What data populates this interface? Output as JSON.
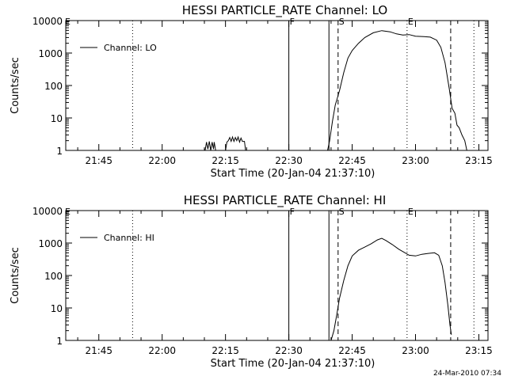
{
  "footer": {
    "timestamp": "24-Mar-2010 07:34"
  },
  "chart_data": [
    {
      "type": "line",
      "title": "HESSI PARTICLE_RATE Channel: LO",
      "xlabel": "Start Time (20-Jan-04 21:37:10)",
      "ylabel": "Counts/sec",
      "y_scale": "log",
      "ylim": [
        1,
        10000
      ],
      "xlim": [
        "21:37:10",
        "23:17:10"
      ],
      "y_ticks": [
        "1",
        "10",
        "100",
        "1000",
        "10000"
      ],
      "x_ticks": [
        "21:45",
        "22:00",
        "22:15",
        "22:30",
        "22:45",
        "23:00",
        "23:15"
      ],
      "legend": {
        "position": "top-left",
        "label": "Channel: LO"
      },
      "markers": [
        {
          "label": "F",
          "time": "22:30:00",
          "style": "solid"
        },
        {
          "label": "",
          "time": "22:39:30",
          "style": "solid"
        },
        {
          "label": "S",
          "time": "22:41:40",
          "style": "dashed"
        },
        {
          "label": "E",
          "time": "22:58:00",
          "style": "dotted"
        },
        {
          "label": "",
          "time": "23:08:20",
          "style": "dashed"
        },
        {
          "label": "",
          "time": "21:53:00",
          "style": "dotted"
        },
        {
          "label": "",
          "time": "23:13:50",
          "style": "dotted"
        }
      ],
      "series": [
        {
          "name": "Channel: LO",
          "segments": [
            [
              [
                "22:10:10",
                1
              ],
              [
                "22:10:30",
                1.8
              ],
              [
                "22:10:50",
                1.1
              ],
              [
                "22:11:10",
                1.9
              ],
              [
                "22:11:30",
                1.0
              ],
              [
                "22:11:50",
                1.8
              ],
              [
                "22:12:10",
                1.1
              ],
              [
                "22:12:20",
                1.8
              ],
              [
                "22:12:40",
                1.0
              ]
            ],
            [
              [
                "22:15:00",
                1.0
              ],
              [
                "22:15:20",
                1.8
              ],
              [
                "22:15:40",
                2.0
              ],
              [
                "22:16:00",
                2.5
              ],
              [
                "22:16:20",
                1.9
              ],
              [
                "22:16:40",
                2.6
              ],
              [
                "22:17:00",
                1.9
              ],
              [
                "22:17:20",
                2.5
              ],
              [
                "22:17:40",
                2.0
              ],
              [
                "22:18:00",
                2.6
              ],
              [
                "22:18:20",
                1.8
              ],
              [
                "22:18:40",
                2.4
              ],
              [
                "22:19:00",
                1.9
              ],
              [
                "22:19:30",
                1.9
              ],
              [
                "22:19:45",
                1.0
              ]
            ],
            [
              [
                "22:39:10",
                1
              ],
              [
                "22:39:40",
                2
              ],
              [
                "22:40:20",
                8
              ],
              [
                "22:41:00",
                25
              ],
              [
                "22:42:00",
                70
              ],
              [
                "22:43:00",
                250
              ],
              [
                "22:44:00",
                700
              ],
              [
                "22:45:00",
                1200
              ],
              [
                "22:46:30",
                2000
              ],
              [
                "22:48:00",
                3000
              ],
              [
                "22:50:00",
                4200
              ],
              [
                "22:52:00",
                4900
              ],
              [
                "22:54:00",
                4500
              ],
              [
                "22:55:30",
                3900
              ],
              [
                "22:57:00",
                3600
              ],
              [
                "22:58:30",
                3700
              ],
              [
                "23:00:00",
                3300
              ],
              [
                "23:02:00",
                3200
              ],
              [
                "23:03:30",
                3100
              ],
              [
                "23:05:00",
                2500
              ],
              [
                "23:06:00",
                1500
              ],
              [
                "23:07:00",
                500
              ],
              [
                "23:08:00",
                80
              ],
              [
                "23:08:40",
                20
              ],
              [
                "23:09:20",
                14
              ],
              [
                "23:09:50",
                6
              ],
              [
                "23:10:20",
                5
              ],
              [
                "23:11:00",
                3
              ],
              [
                "23:11:40",
                2
              ],
              [
                "23:12:10",
                1
              ]
            ]
          ]
        }
      ]
    },
    {
      "type": "line",
      "title": "HESSI PARTICLE_RATE Channel: HI",
      "xlabel": "Start Time (20-Jan-04 21:37:10)",
      "ylabel": "Counts/sec",
      "y_scale": "log",
      "ylim": [
        1,
        10000
      ],
      "xlim": [
        "21:37:10",
        "23:17:10"
      ],
      "y_ticks": [
        "1",
        "10",
        "100",
        "1000",
        "10000"
      ],
      "x_ticks": [
        "21:45",
        "22:00",
        "22:15",
        "22:30",
        "22:45",
        "23:00",
        "23:15"
      ],
      "legend": {
        "position": "top-left",
        "label": "Channel: HI"
      },
      "markers": [
        {
          "label": "F",
          "time": "22:30:00",
          "style": "solid"
        },
        {
          "label": "",
          "time": "22:39:30",
          "style": "solid"
        },
        {
          "label": "S",
          "time": "22:41:40",
          "style": "dashed"
        },
        {
          "label": "E",
          "time": "22:58:00",
          "style": "dotted"
        },
        {
          "label": "",
          "time": "23:08:20",
          "style": "dashed"
        },
        {
          "label": "",
          "time": "21:53:00",
          "style": "dotted"
        },
        {
          "label": "",
          "time": "23:13:50",
          "style": "dotted"
        }
      ],
      "series": [
        {
          "name": "Channel: HI",
          "segments": [
            [
              [
                "22:40:00",
                1
              ],
              [
                "22:40:40",
                2
              ],
              [
                "22:41:20",
                6
              ],
              [
                "22:42:00",
                20
              ],
              [
                "22:43:00",
                70
              ],
              [
                "22:44:00",
                200
              ],
              [
                "22:45:00",
                400
              ],
              [
                "22:46:30",
                600
              ],
              [
                "22:48:00",
                750
              ],
              [
                "22:49:30",
                950
              ],
              [
                "22:51:00",
                1250
              ],
              [
                "22:52:00",
                1400
              ],
              [
                "22:53:00",
                1200
              ],
              [
                "22:54:30",
                900
              ],
              [
                "22:56:00",
                650
              ],
              [
                "22:57:30",
                500
              ],
              [
                "22:58:30",
                420
              ],
              [
                "23:00:00",
                400
              ],
              [
                "23:01:30",
                450
              ],
              [
                "23:03:00",
                480
              ],
              [
                "23:04:30",
                500
              ],
              [
                "23:05:30",
                420
              ],
              [
                "23:06:20",
                200
              ],
              [
                "23:07:00",
                60
              ],
              [
                "23:07:40",
                12
              ],
              [
                "23:08:10",
                3
              ],
              [
                "23:08:30",
                1.5
              ]
            ]
          ]
        }
      ]
    }
  ]
}
